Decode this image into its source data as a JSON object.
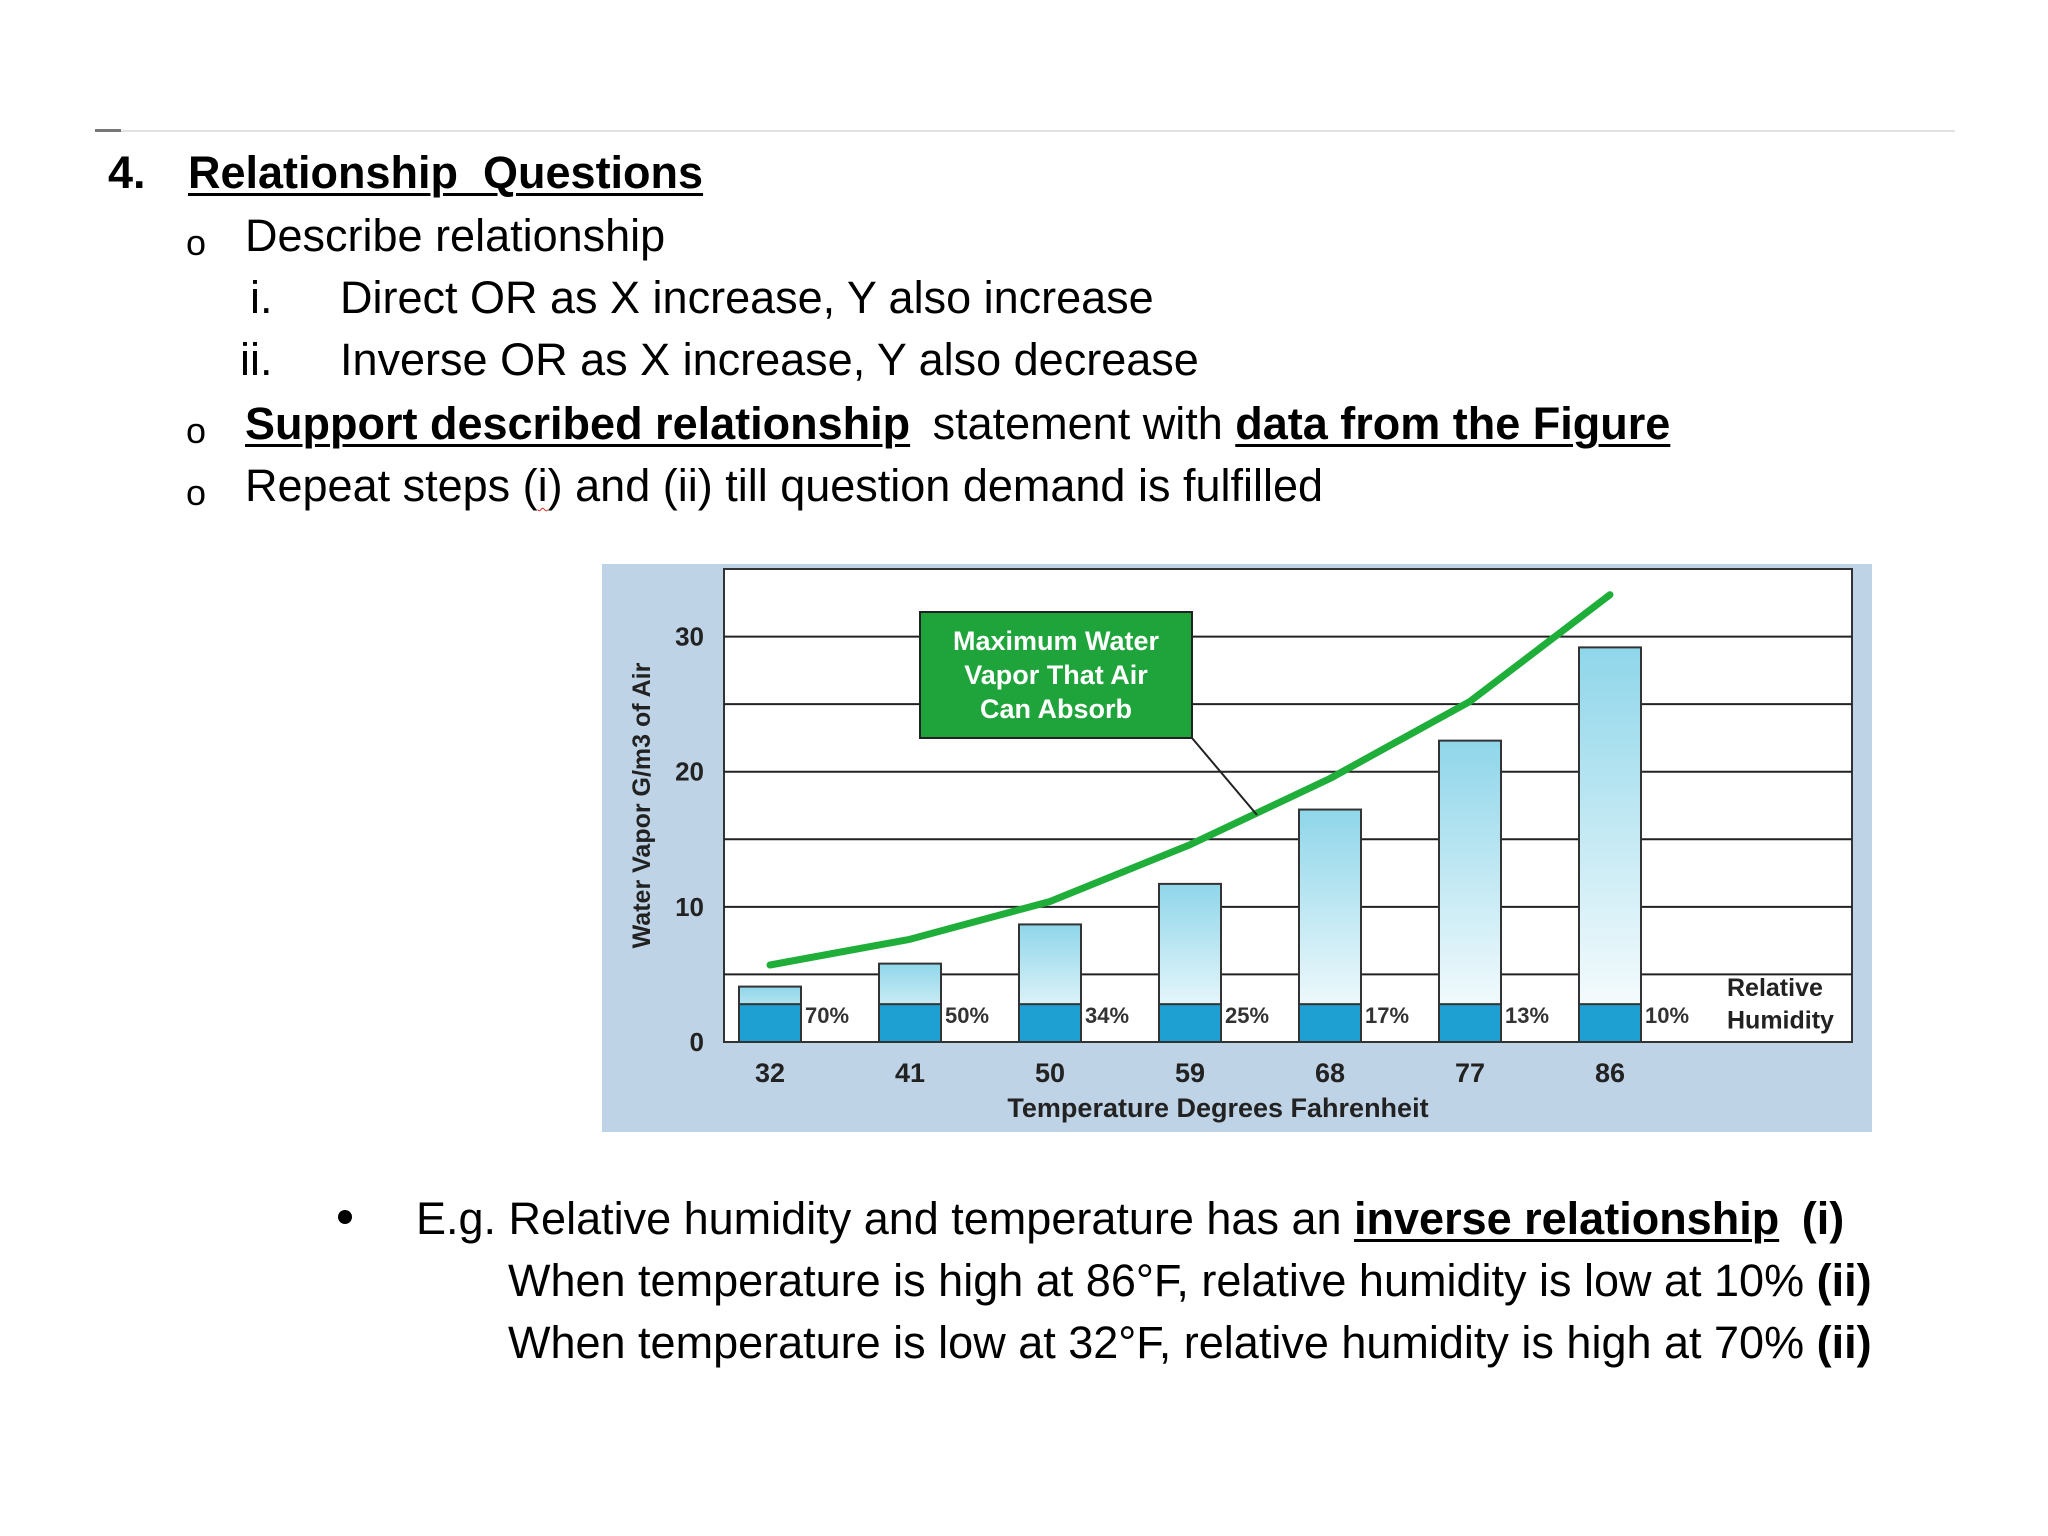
{
  "section": {
    "number": "4.",
    "title": "Relationship  Questions"
  },
  "steps": {
    "describe": "Describe relationship",
    "sub_i_marker": "i.",
    "sub_i": "Direct OR as X increase, Y also increase",
    "sub_ii_marker": "ii.",
    "sub_ii": "Inverse OR as X increase, Y also decrease",
    "support_underlined": "Support described relationship",
    "support_middle": "statement with",
    "support_data": "data from the Figure",
    "repeat_pre": "Repeat steps (",
    "repeat_i": "i",
    "repeat_post": ") and (ii) till question demand is fulfilled"
  },
  "chart_data": {
    "type": "bar",
    "categories": [
      "32",
      "41",
      "50",
      "59",
      "68",
      "77",
      "86"
    ],
    "series": [
      {
        "values": [
          4.1,
          5.8,
          8.7,
          11.7,
          17.2,
          22.3,
          29.2
        ]
      }
    ],
    "relative_humidity": [
      "70%",
      "50%",
      "34%",
      "25%",
      "17%",
      "13%",
      "10%"
    ],
    "humidity_label_line1": "Relative",
    "humidity_label_line2": "Humidity",
    "curve": [
      [
        32,
        5.7
      ],
      [
        41,
        7.6
      ],
      [
        50,
        10.4
      ],
      [
        59,
        14.6
      ],
      [
        68,
        19.5
      ],
      [
        77,
        25.2
      ],
      [
        86,
        33.1
      ]
    ],
    "annotation_lines": [
      "Maximum Water",
      "Vapor That Air",
      "Can Absorb"
    ],
    "xlabel": "Temperature Degrees Fahrenheit",
    "ylabel": "Water Vapor G/m3 of Air",
    "yticks": [
      "0",
      "10",
      "20",
      "30"
    ],
    "ylim": [
      0,
      35
    ],
    "grid": true,
    "colors": {
      "bar_fill": "#8fd6ea",
      "bar_band": "#1ea1d2",
      "curve": "#1fae3a",
      "annotation": "#1fa33b",
      "panel": "#bfd3e6"
    }
  },
  "example": {
    "intro": "E.g. Relative humidity and temperature has an",
    "relationship": "inverse relationship",
    "marker_i": "(i)",
    "line2": "When temperature  is high at 86°F, relative humidity is low at 10%",
    "line3": "When temperature  is low at 32°F, relative humidity is high at 70%",
    "marker_ii": "(ii)"
  }
}
